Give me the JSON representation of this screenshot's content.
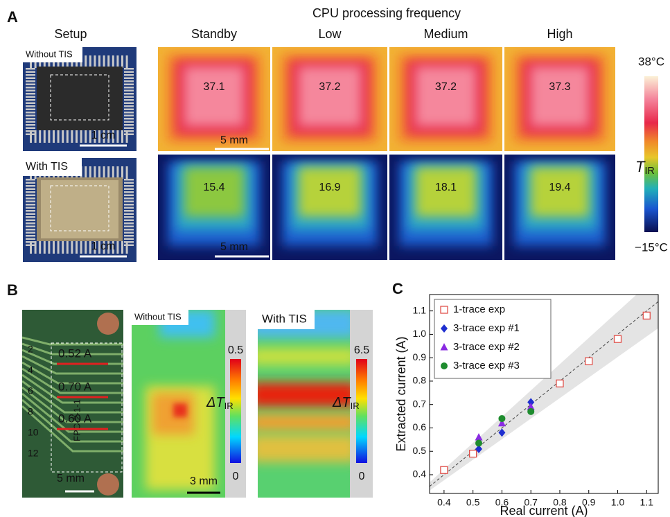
{
  "panel_a": {
    "label": "A",
    "title": "CPU processing frequency",
    "setup_title": "Setup",
    "columns": [
      "Standby",
      "Low",
      "Medium",
      "High"
    ],
    "without_tis_label": "Without TIS",
    "with_tis_label": "With TIS",
    "photo_scale_bar": "1 cm",
    "thermal_scale_bar": "5 mm",
    "values_without_tis": [
      37.1,
      37.2,
      37.2,
      37.3
    ],
    "values_with_tis": [
      15.4,
      16.9,
      18.1,
      19.4
    ],
    "colorbar_max": "38°C",
    "colorbar_min": "−15°C",
    "colorbar_symbol": "T",
    "colorbar_subscript": "IR"
  },
  "panel_b": {
    "label": "B",
    "currents": [
      "0.52 A",
      "0.70 A",
      "0.60 A"
    ],
    "board_numbers": [
      2,
      4,
      6,
      8,
      10,
      12
    ],
    "board_text": "FPC-2-1-1",
    "board_scale_bar": "5 mm",
    "without_tis_label": "Without TIS",
    "with_tis_label": "With TIS",
    "map_scale_bar": "3 mm",
    "colorbar_symbol": "ΔT",
    "colorbar_subscript": "IR",
    "without_colorbar_max": "0.5",
    "without_colorbar_min": "0",
    "with_colorbar_max": "6.5",
    "with_colorbar_min": "0"
  },
  "panel_c": {
    "label": "C"
  },
  "chart_data": {
    "type": "scatter",
    "x_label": "Real current (A)",
    "y_label": "Extracted current (A)",
    "xlim": [
      0.35,
      1.14
    ],
    "ylim": [
      0.32,
      1.17
    ],
    "xticks": [
      0.4,
      0.5,
      0.6,
      0.7,
      0.8,
      0.9,
      {
        "value": 1,
        "label": "1.0"
      },
      1.1
    ],
    "yticks": [
      0.4,
      0.5,
      0.6,
      0.7,
      0.8,
      0.9,
      {
        "value": 1,
        "label": "1.0"
      },
      1.1
    ],
    "series": [
      {
        "name": "1-trace exp",
        "color": "#e0504a",
        "marker": "square-open",
        "x": [
          0.4,
          0.5,
          0.8,
          0.9,
          1.0,
          1.1
        ],
        "values": [
          0.42,
          0.49,
          0.79,
          0.885,
          0.98,
          1.08
        ]
      },
      {
        "name": "3-trace exp #1",
        "color": "#1f2fd0",
        "marker": "diamond",
        "x": [
          0.52,
          0.6,
          0.7
        ],
        "values": [
          0.51,
          0.58,
          0.71
        ]
      },
      {
        "name": "3-trace exp #2",
        "color": "#8a2be2",
        "marker": "triangle",
        "x": [
          0.52,
          0.6,
          0.7
        ],
        "values": [
          0.56,
          0.62,
          0.69
        ]
      },
      {
        "name": "3-trace exp #3",
        "color": "#1e8c2e",
        "marker": "circle",
        "x": [
          0.52,
          0.6,
          0.7
        ],
        "values": [
          0.535,
          0.64,
          0.67
        ]
      }
    ]
  }
}
